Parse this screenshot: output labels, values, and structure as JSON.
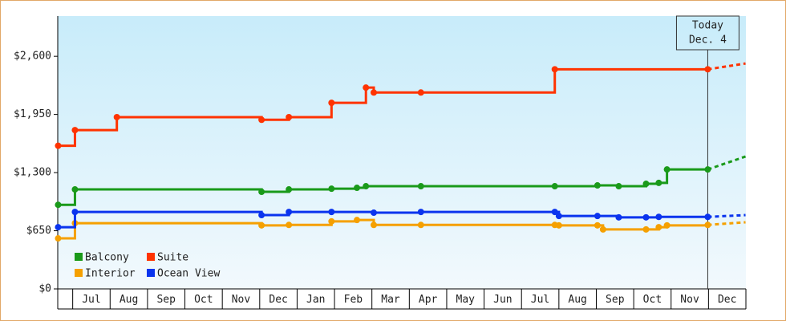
{
  "chart_data": {
    "type": "step-line",
    "ylim": [
      0,
      3050
    ],
    "yticks": [
      {
        "value": 0,
        "label": "$0"
      },
      {
        "value": 650,
        "label": "$650"
      },
      {
        "value": 1300,
        "label": "$1,300"
      },
      {
        "value": 1950,
        "label": "$1,950"
      },
      {
        "value": 2600,
        "label": "$2,600"
      }
    ],
    "xlim": [
      -0.4,
      18
    ],
    "xticks": [
      {
        "value": 0.5,
        "label": "Jul"
      },
      {
        "value": 1.5,
        "label": "Aug"
      },
      {
        "value": 2.5,
        "label": "Sep"
      },
      {
        "value": 3.5,
        "label": "Oct"
      },
      {
        "value": 4.5,
        "label": "Nov"
      },
      {
        "value": 5.5,
        "label": "Dec"
      },
      {
        "value": 6.5,
        "label": "Jan"
      },
      {
        "value": 7.5,
        "label": "Feb"
      },
      {
        "value": 8.5,
        "label": "Mar"
      },
      {
        "value": 9.5,
        "label": "Apr"
      },
      {
        "value": 10.5,
        "label": "May"
      },
      {
        "value": 11.5,
        "label": "Jun"
      },
      {
        "value": 12.5,
        "label": "Jul"
      },
      {
        "value": 13.5,
        "label": "Aug"
      },
      {
        "value": 14.5,
        "label": "Sep"
      },
      {
        "value": 15.5,
        "label": "Oct"
      },
      {
        "value": 16.5,
        "label": "Nov"
      },
      {
        "value": 17.5,
        "label": "Dec"
      }
    ],
    "annotation": {
      "text": [
        "Today",
        "Dec. 4"
      ],
      "x": 16.98
    },
    "legend": "lower left",
    "series": [
      {
        "name": "Balcony",
        "color": "#1a9a1a",
        "x": [
          -0.39,
          0.06,
          5.05,
          5.78,
          6.92,
          7.6,
          7.84,
          9.31,
          12.89,
          14.03,
          14.6,
          15.33,
          15.67,
          15.89,
          16.98,
          17.99
        ],
        "values": [
          940,
          1112,
          1085,
          1112,
          1120,
          1130,
          1148,
          1148,
          1148,
          1157,
          1148,
          1175,
          1185,
          1335,
          1335,
          1480
        ]
      },
      {
        "name": "Suite",
        "color": "#ff3300",
        "x": [
          -0.39,
          0.06,
          1.18,
          5.05,
          5.78,
          6.92,
          7.84,
          8.05,
          9.31,
          12.89,
          16.98,
          17.99
        ],
        "values": [
          1600,
          1775,
          1920,
          1890,
          1920,
          2080,
          2250,
          2195,
          2195,
          2455,
          2455,
          2520
        ]
      },
      {
        "name": "Interior",
        "color": "#f5a000",
        "x": [
          -0.39,
          0.06,
          5.05,
          5.78,
          6.92,
          7.6,
          8.05,
          9.31,
          12.89,
          13.0,
          14.03,
          14.18,
          15.33,
          15.67,
          15.89,
          16.98,
          17.99
        ],
        "values": [
          565,
          735,
          710,
          715,
          755,
          770,
          715,
          715,
          715,
          710,
          710,
          665,
          665,
          690,
          710,
          715,
          745
        ]
      },
      {
        "name": "Ocean View",
        "color": "#0a34ee",
        "x": [
          -0.39,
          0.06,
          5.05,
          5.78,
          6.92,
          8.05,
          9.31,
          12.89,
          13.0,
          14.03,
          14.6,
          15.33,
          15.67,
          16.98,
          17.99
        ],
        "values": [
          690,
          860,
          825,
          860,
          860,
          852,
          860,
          860,
          815,
          815,
          800,
          800,
          805,
          805,
          825
        ]
      }
    ]
  }
}
